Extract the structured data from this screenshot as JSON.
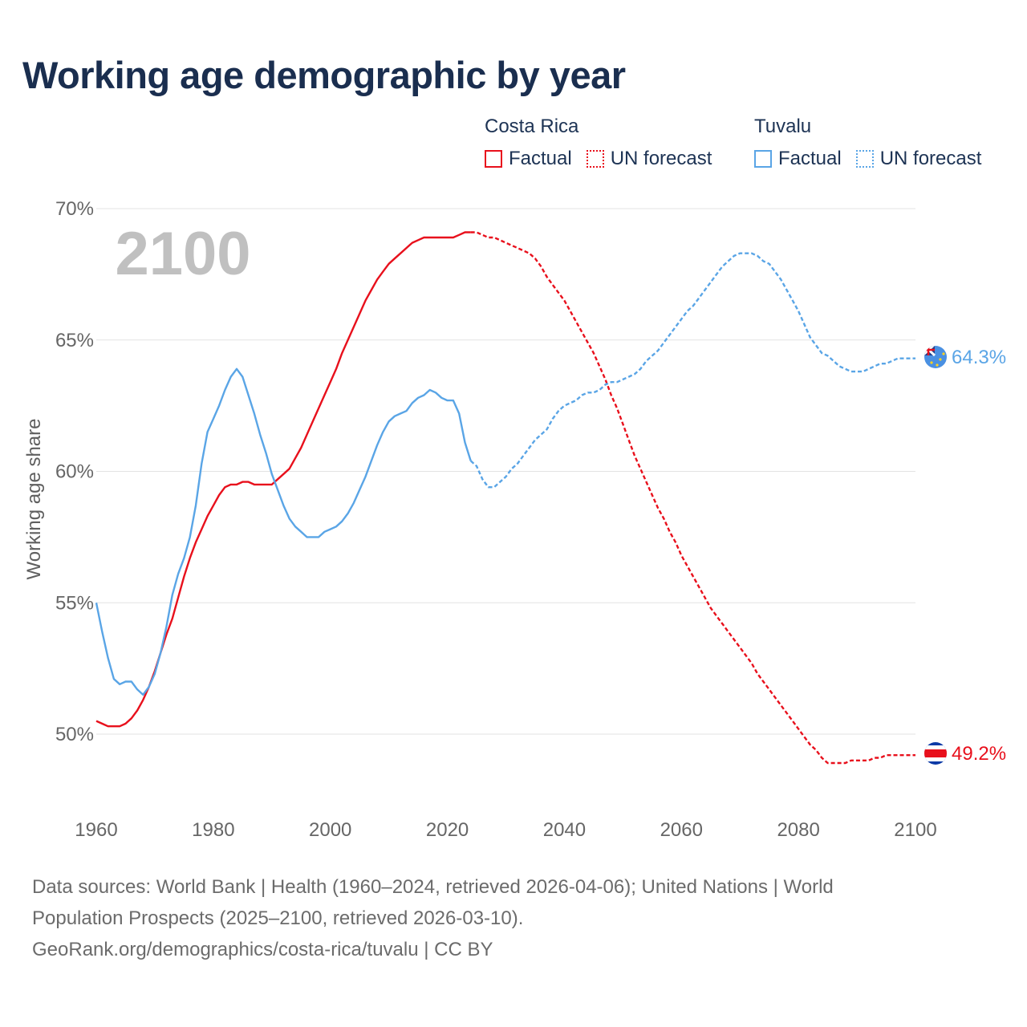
{
  "title": "Working age demographic by year",
  "legend": {
    "groups": [
      {
        "country": "Costa Rica",
        "factual_label": "Factual",
        "forecast_label": "UN forecast",
        "color": "#e8101c"
      },
      {
        "country": "Tuvalu",
        "factual_label": "Factual",
        "forecast_label": "UN forecast",
        "color": "#5aa5e6"
      }
    ]
  },
  "footer": {
    "line1": "Data sources: World Bank | Health (1960–2024, retrieved 2026-04-06); United Nations | World",
    "line2": "Population Prospects (2025–2100, retrieved 2026-03-10).",
    "line3": "GeoRank.org/demographics/costa-rica/tuvalu | CC BY"
  },
  "chart_data": {
    "type": "line",
    "title": "Working age demographic by year",
    "ylabel": "Working age share",
    "xlabel": "",
    "xlim": [
      1960,
      2100
    ],
    "ylim": [
      48,
      70
    ],
    "x_ticks": [
      1960,
      1980,
      2000,
      2020,
      2040,
      2060,
      2080,
      2100
    ],
    "y_ticks": [
      50,
      55,
      60,
      65,
      70
    ],
    "y_tick_labels": [
      "50%",
      "55%",
      "60%",
      "65%",
      "70%"
    ],
    "grid": true,
    "year_watermark": "2100",
    "forecast_start": 2024,
    "series": [
      {
        "name": "Costa Rica",
        "color": "#e8101c",
        "end_label": "49.2%",
        "flag": "costa-rica",
        "points": [
          [
            1960,
            50.5
          ],
          [
            1961,
            50.4
          ],
          [
            1962,
            50.3
          ],
          [
            1963,
            50.3
          ],
          [
            1964,
            50.3
          ],
          [
            1965,
            50.4
          ],
          [
            1966,
            50.6
          ],
          [
            1967,
            50.9
          ],
          [
            1968,
            51.3
          ],
          [
            1969,
            51.8
          ],
          [
            1970,
            52.4
          ],
          [
            1971,
            53.1
          ],
          [
            1972,
            53.8
          ],
          [
            1973,
            54.4
          ],
          [
            1974,
            55.2
          ],
          [
            1975,
            56.0
          ],
          [
            1976,
            56.7
          ],
          [
            1977,
            57.3
          ],
          [
            1978,
            57.8
          ],
          [
            1979,
            58.3
          ],
          [
            1980,
            58.7
          ],
          [
            1981,
            59.1
          ],
          [
            1982,
            59.4
          ],
          [
            1983,
            59.5
          ],
          [
            1984,
            59.5
          ],
          [
            1985,
            59.6
          ],
          [
            1986,
            59.6
          ],
          [
            1987,
            59.5
          ],
          [
            1988,
            59.5
          ],
          [
            1989,
            59.5
          ],
          [
            1990,
            59.5
          ],
          [
            1991,
            59.7
          ],
          [
            1992,
            59.9
          ],
          [
            1993,
            60.1
          ],
          [
            1994,
            60.5
          ],
          [
            1995,
            60.9
          ],
          [
            1996,
            61.4
          ],
          [
            1997,
            61.9
          ],
          [
            1998,
            62.4
          ],
          [
            1999,
            62.9
          ],
          [
            2000,
            63.4
          ],
          [
            2001,
            63.9
          ],
          [
            2002,
            64.5
          ],
          [
            2003,
            65.0
          ],
          [
            2004,
            65.5
          ],
          [
            2005,
            66.0
          ],
          [
            2006,
            66.5
          ],
          [
            2007,
            66.9
          ],
          [
            2008,
            67.3
          ],
          [
            2009,
            67.6
          ],
          [
            2010,
            67.9
          ],
          [
            2011,
            68.1
          ],
          [
            2012,
            68.3
          ],
          [
            2013,
            68.5
          ],
          [
            2014,
            68.7
          ],
          [
            2015,
            68.8
          ],
          [
            2016,
            68.9
          ],
          [
            2017,
            68.9
          ],
          [
            2018,
            68.9
          ],
          [
            2019,
            68.9
          ],
          [
            2020,
            68.9
          ],
          [
            2021,
            68.9
          ],
          [
            2022,
            69.0
          ],
          [
            2023,
            69.1
          ],
          [
            2024,
            69.1
          ],
          [
            2025,
            69.1
          ],
          [
            2026,
            69.0
          ],
          [
            2027,
            68.9
          ],
          [
            2028,
            68.9
          ],
          [
            2029,
            68.8
          ],
          [
            2030,
            68.7
          ],
          [
            2031,
            68.6
          ],
          [
            2032,
            68.5
          ],
          [
            2033,
            68.4
          ],
          [
            2034,
            68.3
          ],
          [
            2035,
            68.1
          ],
          [
            2036,
            67.8
          ],
          [
            2037,
            67.4
          ],
          [
            2038,
            67.1
          ],
          [
            2039,
            66.8
          ],
          [
            2040,
            66.5
          ],
          [
            2041,
            66.1
          ],
          [
            2042,
            65.7
          ],
          [
            2043,
            65.3
          ],
          [
            2044,
            64.9
          ],
          [
            2045,
            64.5
          ],
          [
            2046,
            64.0
          ],
          [
            2047,
            63.5
          ],
          [
            2048,
            62.9
          ],
          [
            2049,
            62.4
          ],
          [
            2050,
            61.8
          ],
          [
            2051,
            61.2
          ],
          [
            2052,
            60.6
          ],
          [
            2053,
            60.1
          ],
          [
            2054,
            59.6
          ],
          [
            2055,
            59.1
          ],
          [
            2056,
            58.6
          ],
          [
            2057,
            58.2
          ],
          [
            2058,
            57.7
          ],
          [
            2059,
            57.3
          ],
          [
            2060,
            56.8
          ],
          [
            2061,
            56.4
          ],
          [
            2062,
            56.0
          ],
          [
            2063,
            55.6
          ],
          [
            2064,
            55.2
          ],
          [
            2065,
            54.8
          ],
          [
            2066,
            54.5
          ],
          [
            2067,
            54.2
          ],
          [
            2068,
            53.9
          ],
          [
            2069,
            53.6
          ],
          [
            2070,
            53.3
          ],
          [
            2071,
            53.0
          ],
          [
            2072,
            52.7
          ],
          [
            2073,
            52.3
          ],
          [
            2074,
            52.0
          ],
          [
            2075,
            51.7
          ],
          [
            2076,
            51.4
          ],
          [
            2077,
            51.1
          ],
          [
            2078,
            50.8
          ],
          [
            2079,
            50.5
          ],
          [
            2080,
            50.2
          ],
          [
            2081,
            49.9
          ],
          [
            2082,
            49.6
          ],
          [
            2083,
            49.4
          ],
          [
            2084,
            49.1
          ],
          [
            2085,
            48.9
          ],
          [
            2086,
            48.9
          ],
          [
            2087,
            48.9
          ],
          [
            2088,
            48.9
          ],
          [
            2089,
            49.0
          ],
          [
            2090,
            49.0
          ],
          [
            2091,
            49.0
          ],
          [
            2092,
            49.0
          ],
          [
            2093,
            49.1
          ],
          [
            2094,
            49.1
          ],
          [
            2095,
            49.2
          ],
          [
            2096,
            49.2
          ],
          [
            2097,
            49.2
          ],
          [
            2098,
            49.2
          ],
          [
            2099,
            49.2
          ],
          [
            2100,
            49.2
          ]
        ]
      },
      {
        "name": "Tuvalu",
        "color": "#5aa5e6",
        "end_label": "64.3%",
        "flag": "tuvalu",
        "points": [
          [
            1960,
            55.0
          ],
          [
            1961,
            53.9
          ],
          [
            1962,
            52.9
          ],
          [
            1963,
            52.1
          ],
          [
            1964,
            51.9
          ],
          [
            1965,
            52.0
          ],
          [
            1966,
            52.0
          ],
          [
            1967,
            51.7
          ],
          [
            1968,
            51.5
          ],
          [
            1969,
            51.8
          ],
          [
            1970,
            52.3
          ],
          [
            1971,
            53.1
          ],
          [
            1972,
            54.1
          ],
          [
            1973,
            55.3
          ],
          [
            1974,
            56.1
          ],
          [
            1975,
            56.7
          ],
          [
            1976,
            57.5
          ],
          [
            1977,
            58.7
          ],
          [
            1978,
            60.3
          ],
          [
            1979,
            61.5
          ],
          [
            1980,
            62.0
          ],
          [
            1981,
            62.5
          ],
          [
            1982,
            63.1
          ],
          [
            1983,
            63.6
          ],
          [
            1984,
            63.9
          ],
          [
            1985,
            63.6
          ],
          [
            1986,
            62.9
          ],
          [
            1987,
            62.2
          ],
          [
            1988,
            61.4
          ],
          [
            1989,
            60.7
          ],
          [
            1990,
            59.9
          ],
          [
            1991,
            59.3
          ],
          [
            1992,
            58.7
          ],
          [
            1993,
            58.2
          ],
          [
            1994,
            57.9
          ],
          [
            1995,
            57.7
          ],
          [
            1996,
            57.5
          ],
          [
            1997,
            57.5
          ],
          [
            1998,
            57.5
          ],
          [
            1999,
            57.7
          ],
          [
            2000,
            57.8
          ],
          [
            2001,
            57.9
          ],
          [
            2002,
            58.1
          ],
          [
            2003,
            58.4
          ],
          [
            2004,
            58.8
          ],
          [
            2005,
            59.3
          ],
          [
            2006,
            59.8
          ],
          [
            2007,
            60.4
          ],
          [
            2008,
            61.0
          ],
          [
            2009,
            61.5
          ],
          [
            2010,
            61.9
          ],
          [
            2011,
            62.1
          ],
          [
            2012,
            62.2
          ],
          [
            2013,
            62.3
          ],
          [
            2014,
            62.6
          ],
          [
            2015,
            62.8
          ],
          [
            2016,
            62.9
          ],
          [
            2017,
            63.1
          ],
          [
            2018,
            63.0
          ],
          [
            2019,
            62.8
          ],
          [
            2020,
            62.7
          ],
          [
            2021,
            62.7
          ],
          [
            2022,
            62.2
          ],
          [
            2023,
            61.1
          ],
          [
            2024,
            60.4
          ],
          [
            2025,
            60.2
          ],
          [
            2026,
            59.7
          ],
          [
            2027,
            59.4
          ],
          [
            2028,
            59.4
          ],
          [
            2029,
            59.6
          ],
          [
            2030,
            59.8
          ],
          [
            2031,
            60.1
          ],
          [
            2032,
            60.3
          ],
          [
            2033,
            60.6
          ],
          [
            2034,
            60.9
          ],
          [
            2035,
            61.2
          ],
          [
            2036,
            61.4
          ],
          [
            2037,
            61.6
          ],
          [
            2038,
            62.0
          ],
          [
            2039,
            62.3
          ],
          [
            2040,
            62.5
          ],
          [
            2041,
            62.6
          ],
          [
            2042,
            62.7
          ],
          [
            2043,
            62.9
          ],
          [
            2044,
            63.0
          ],
          [
            2045,
            63.0
          ],
          [
            2046,
            63.1
          ],
          [
            2047,
            63.3
          ],
          [
            2048,
            63.4
          ],
          [
            2049,
            63.4
          ],
          [
            2050,
            63.5
          ],
          [
            2051,
            63.6
          ],
          [
            2052,
            63.7
          ],
          [
            2053,
            63.9
          ],
          [
            2054,
            64.2
          ],
          [
            2055,
            64.4
          ],
          [
            2056,
            64.6
          ],
          [
            2057,
            64.9
          ],
          [
            2058,
            65.2
          ],
          [
            2059,
            65.5
          ],
          [
            2060,
            65.8
          ],
          [
            2061,
            66.1
          ],
          [
            2062,
            66.3
          ],
          [
            2063,
            66.6
          ],
          [
            2064,
            66.9
          ],
          [
            2065,
            67.2
          ],
          [
            2066,
            67.5
          ],
          [
            2067,
            67.8
          ],
          [
            2068,
            68.0
          ],
          [
            2069,
            68.2
          ],
          [
            2070,
            68.3
          ],
          [
            2071,
            68.3
          ],
          [
            2072,
            68.3
          ],
          [
            2073,
            68.2
          ],
          [
            2074,
            68.0
          ],
          [
            2075,
            67.9
          ],
          [
            2076,
            67.6
          ],
          [
            2077,
            67.3
          ],
          [
            2078,
            66.9
          ],
          [
            2079,
            66.5
          ],
          [
            2080,
            66.1
          ],
          [
            2081,
            65.6
          ],
          [
            2082,
            65.1
          ],
          [
            2083,
            64.8
          ],
          [
            2084,
            64.5
          ],
          [
            2085,
            64.4
          ],
          [
            2086,
            64.2
          ],
          [
            2087,
            64.0
          ],
          [
            2088,
            63.9
          ],
          [
            2089,
            63.8
          ],
          [
            2090,
            63.8
          ],
          [
            2091,
            63.8
          ],
          [
            2092,
            63.9
          ],
          [
            2093,
            64.0
          ],
          [
            2094,
            64.1
          ],
          [
            2095,
            64.1
          ],
          [
            2096,
            64.2
          ],
          [
            2097,
            64.3
          ],
          [
            2098,
            64.3
          ],
          [
            2099,
            64.3
          ],
          [
            2100,
            64.3
          ]
        ]
      }
    ]
  }
}
